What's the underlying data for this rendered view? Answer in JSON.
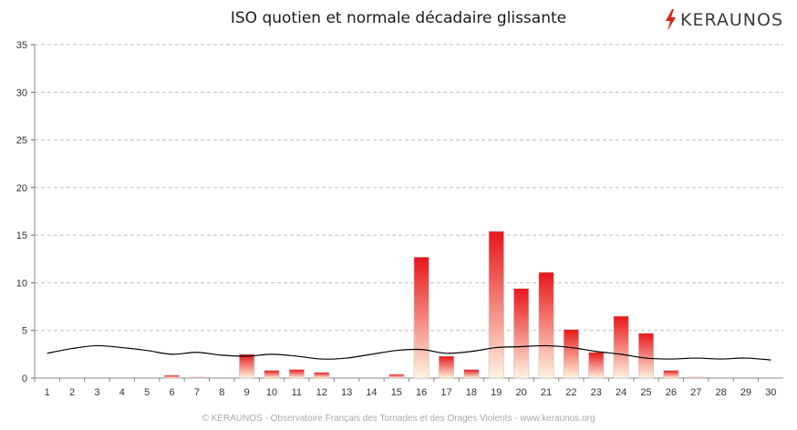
{
  "header": {
    "title": "ISO quotien et normale décadaire glissante",
    "brand_name": "KERAUNOS",
    "brand_color": "#d9241c",
    "brand_icon": "lightning-bolt-icon"
  },
  "footer": {
    "text": "© KERAUNOS - Observatoire Français des Tornades et des Orages Violents - www.keraunos.org"
  },
  "colors": {
    "bar_top": "#e8161a",
    "bar_bottom": "#fff3df",
    "line": "#000000",
    "grid": "#bdbdbd"
  },
  "chart_data": {
    "type": "bar",
    "title": "ISO quotien et normale décadaire glissante",
    "xlabel": "",
    "ylabel": "",
    "ylim": [
      0,
      35
    ],
    "y_ticks": [
      "0",
      "5",
      "10",
      "15",
      "20",
      "25",
      "30",
      "35"
    ],
    "grid": true,
    "legend": "none",
    "categories": [
      "1",
      "2",
      "3",
      "4",
      "5",
      "6",
      "7",
      "8",
      "9",
      "10",
      "11",
      "12",
      "13",
      "14",
      "15",
      "16",
      "17",
      "18",
      "19",
      "20",
      "21",
      "22",
      "23",
      "24",
      "25",
      "26",
      "27",
      "28",
      "29",
      "30"
    ],
    "series": [
      {
        "type": "bar",
        "values": [
          0,
          0,
          0,
          0,
          0,
          0.3,
          0.1,
          0,
          2.5,
          0.8,
          0.9,
          0.6,
          0,
          0,
          0.4,
          12.7,
          2.3,
          0.9,
          15.4,
          9.4,
          11.1,
          5.1,
          2.7,
          6.5,
          4.7,
          0.8,
          0.1,
          0,
          0,
          0
        ]
      },
      {
        "type": "line",
        "values": [
          2.6,
          3.1,
          3.4,
          3.2,
          2.9,
          2.5,
          2.7,
          2.4,
          2.3,
          2.5,
          2.3,
          2.0,
          2.1,
          2.5,
          2.9,
          3.0,
          2.6,
          2.8,
          3.2,
          3.3,
          3.4,
          3.2,
          2.8,
          2.5,
          2.1,
          2.0,
          2.1,
          2.0,
          2.1,
          1.9
        ]
      }
    ]
  }
}
